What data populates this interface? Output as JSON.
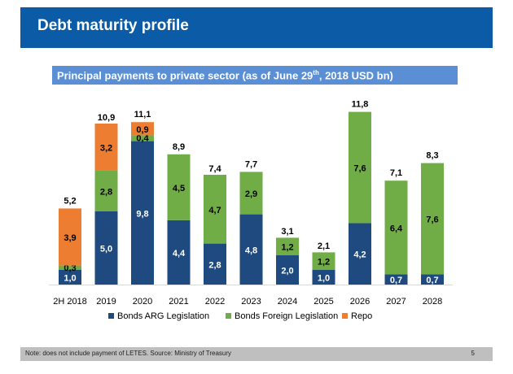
{
  "header": {
    "title": "Debt maturity profile"
  },
  "subtitle": {
    "text_before": "Principal payments to private sector (as of June 29",
    "sup": "th",
    "text_after": ", 2018 USD bn)"
  },
  "footer": {
    "note": "Note: does not include payment of LETES. Source: Ministry of Treasury",
    "page": "5"
  },
  "chart_data": {
    "type": "bar",
    "stacked": true,
    "title": "Principal payments to private sector (as of June 29th, 2018 USD bn)",
    "xlabel": "",
    "ylabel": "",
    "ylim": [
      0,
      12
    ],
    "grid": false,
    "legend_position": "bottom",
    "categories": [
      "2H 2018",
      "2019",
      "2020",
      "2021",
      "2022",
      "2023",
      "2024",
      "2025",
      "2026",
      "2027",
      "2028"
    ],
    "series": [
      {
        "name": "Bonds ARG Legislation",
        "color": "#1f4a7f",
        "label_color": "#ffffff",
        "values": [
          1.0,
          5.0,
          9.8,
          4.4,
          2.8,
          4.8,
          2.0,
          1.0,
          4.2,
          0.7,
          0.7
        ],
        "labels": [
          "1,0",
          "5,0",
          "9,8",
          "4,4",
          "2,8",
          "4,8",
          "2,0",
          "1,0",
          "4,2",
          "0,7",
          "0,7"
        ]
      },
      {
        "name": "Bonds Foreign Legislation",
        "color": "#70ad47",
        "label_color": "#000000",
        "values": [
          0.3,
          2.8,
          0.4,
          4.5,
          4.7,
          2.9,
          1.2,
          1.2,
          7.6,
          6.4,
          7.6
        ],
        "labels": [
          "0,3",
          "2,8",
          "0,4",
          "4,5",
          "4,7",
          "2,9",
          "1,2",
          "1,2",
          "7,6",
          "6,4",
          "7,6"
        ]
      },
      {
        "name": "Repo",
        "color": "#ed7d31",
        "label_color": "#000000",
        "values": [
          3.9,
          3.2,
          0.9,
          0,
          0,
          0,
          0,
          0,
          0,
          0,
          0
        ],
        "labels": [
          "3,9",
          "3,2",
          "0,9",
          "",
          "",
          "",
          "",
          "",
          "",
          "",
          ""
        ]
      }
    ],
    "totals": [
      5.2,
      10.9,
      11.1,
      8.9,
      7.4,
      7.7,
      3.1,
      2.1,
      11.8,
      7.1,
      8.3
    ],
    "total_labels": [
      "5,2",
      "10,9",
      "11,1",
      "8,9",
      "7,4",
      "7,7",
      "3,1",
      "2,1",
      "11,8",
      "7,1",
      "8,3"
    ]
  }
}
